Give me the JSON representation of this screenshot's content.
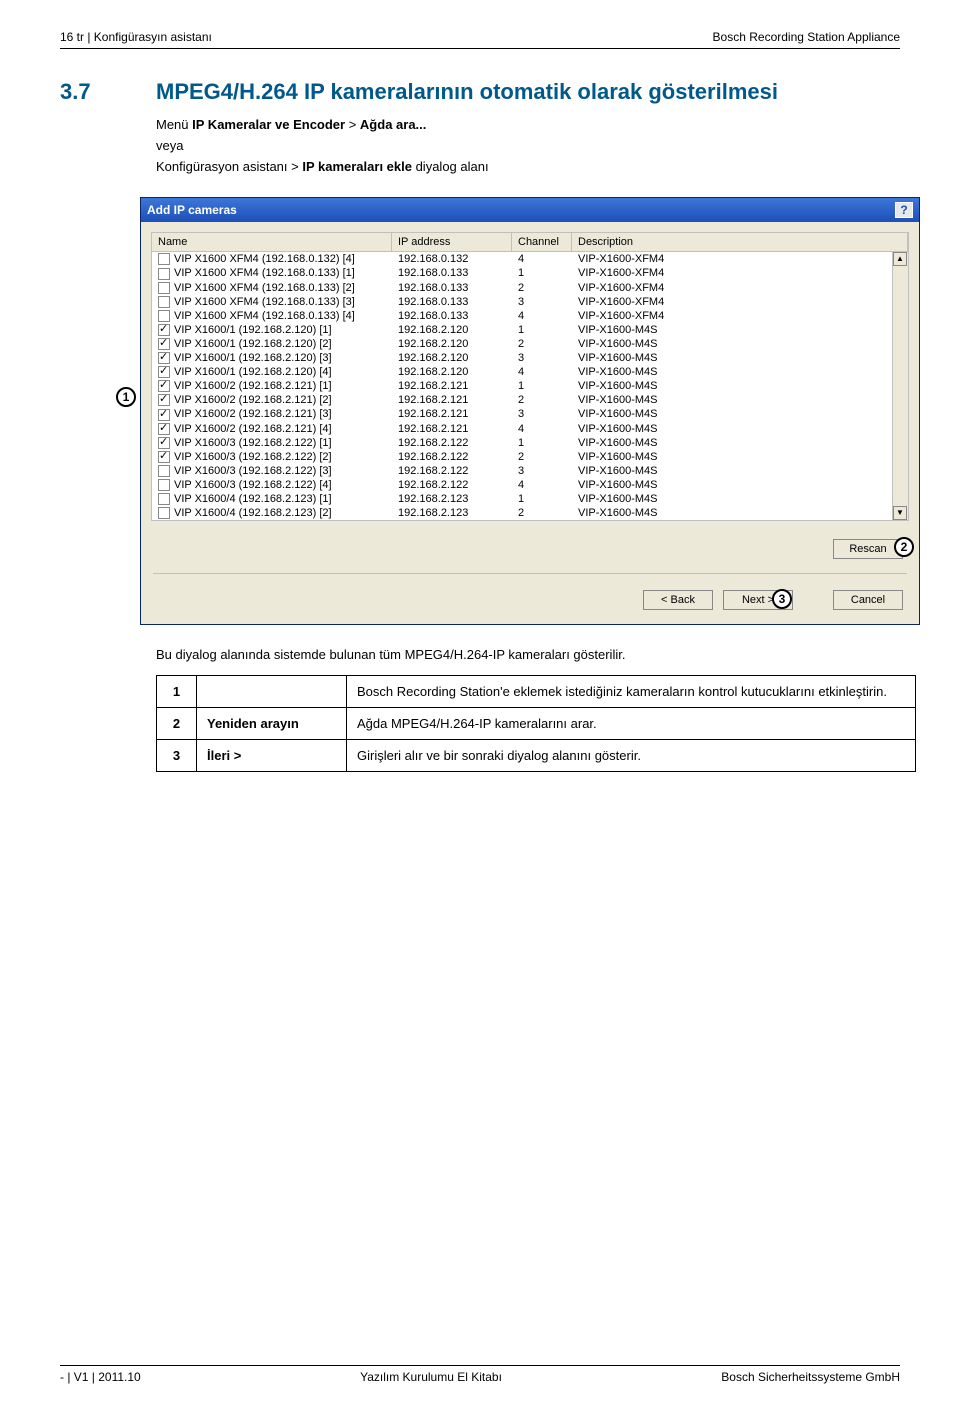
{
  "header": {
    "left": "16    tr | Konfigürasyın asistanı",
    "right": "Bosch Recording Station Appliance"
  },
  "section": {
    "num": "3.7",
    "title": "MPEG4/H.264 IP kameralarının otomatik olarak gösterilmesi"
  },
  "body": {
    "line1a": "Menü ",
    "line1b": "IP Kameralar ve Encoder",
    "line1c": " > ",
    "line1d": "Ağda ara...",
    "line2": "veya",
    "line3a": "Konfigürasyon asistanı > ",
    "line3b": "IP kameraları ekle",
    "line3c": " diyalog alanı"
  },
  "dialog": {
    "title": "Add IP cameras",
    "columns": {
      "name": "Name",
      "ip": "IP address",
      "ch": "Channel",
      "desc": "Description"
    },
    "rows": [
      {
        "c": false,
        "n": "VIP X1600 XFM4 (192.168.0.132) [4]",
        "ip": "192.168.0.132",
        "ch": "4",
        "d": "VIP-X1600-XFM4"
      },
      {
        "c": false,
        "n": "VIP X1600 XFM4 (192.168.0.133) [1]",
        "ip": "192.168.0.133",
        "ch": "1",
        "d": "VIP-X1600-XFM4"
      },
      {
        "c": false,
        "n": "VIP X1600 XFM4 (192.168.0.133) [2]",
        "ip": "192.168.0.133",
        "ch": "2",
        "d": "VIP-X1600-XFM4"
      },
      {
        "c": false,
        "n": "VIP X1600 XFM4 (192.168.0.133) [3]",
        "ip": "192.168.0.133",
        "ch": "3",
        "d": "VIP-X1600-XFM4"
      },
      {
        "c": false,
        "n": "VIP X1600 XFM4 (192.168.0.133) [4]",
        "ip": "192.168.0.133",
        "ch": "4",
        "d": "VIP-X1600-XFM4"
      },
      {
        "c": true,
        "n": "VIP X1600/1 (192.168.2.120) [1]",
        "ip": "192.168.2.120",
        "ch": "1",
        "d": "VIP-X1600-M4S"
      },
      {
        "c": true,
        "n": "VIP X1600/1 (192.168.2.120) [2]",
        "ip": "192.168.2.120",
        "ch": "2",
        "d": "VIP-X1600-M4S"
      },
      {
        "c": true,
        "n": "VIP X1600/1 (192.168.2.120) [3]",
        "ip": "192.168.2.120",
        "ch": "3",
        "d": "VIP-X1600-M4S"
      },
      {
        "c": true,
        "n": "VIP X1600/1 (192.168.2.120) [4]",
        "ip": "192.168.2.120",
        "ch": "4",
        "d": "VIP-X1600-M4S"
      },
      {
        "c": true,
        "n": "VIP X1600/2 (192.168.2.121) [1]",
        "ip": "192.168.2.121",
        "ch": "1",
        "d": "VIP-X1600-M4S"
      },
      {
        "c": true,
        "n": "VIP X1600/2 (192.168.2.121) [2]",
        "ip": "192.168.2.121",
        "ch": "2",
        "d": "VIP-X1600-M4S"
      },
      {
        "c": true,
        "n": "VIP X1600/2 (192.168.2.121) [3]",
        "ip": "192.168.2.121",
        "ch": "3",
        "d": "VIP-X1600-M4S"
      },
      {
        "c": true,
        "n": "VIP X1600/2 (192.168.2.121) [4]",
        "ip": "192.168.2.121",
        "ch": "4",
        "d": "VIP-X1600-M4S"
      },
      {
        "c": true,
        "n": "VIP X1600/3 (192.168.2.122) [1]",
        "ip": "192.168.2.122",
        "ch": "1",
        "d": "VIP-X1600-M4S"
      },
      {
        "c": true,
        "n": "VIP X1600/3 (192.168.2.122) [2]",
        "ip": "192.168.2.122",
        "ch": "2",
        "d": "VIP-X1600-M4S"
      },
      {
        "c": false,
        "n": "VIP X1600/3 (192.168.2.122) [3]",
        "ip": "192.168.2.122",
        "ch": "3",
        "d": "VIP-X1600-M4S"
      },
      {
        "c": false,
        "n": "VIP X1600/3 (192.168.2.122) [4]",
        "ip": "192.168.2.122",
        "ch": "4",
        "d": "VIP-X1600-M4S"
      },
      {
        "c": false,
        "n": "VIP X1600/4 (192.168.2.123) [1]",
        "ip": "192.168.2.123",
        "ch": "1",
        "d": "VIP-X1600-M4S"
      },
      {
        "c": false,
        "n": "VIP X1600/4 (192.168.2.123) [2]",
        "ip": "192.168.2.123",
        "ch": "2",
        "d": "VIP-X1600-M4S"
      }
    ],
    "rescan": "Rescan",
    "back": "< Back",
    "next": "Next >",
    "cancel": "Cancel"
  },
  "callouts": {
    "c1": "1",
    "c2": "2",
    "c3": "3"
  },
  "desc": "Bu diyalog alanında sistemde bulunan tüm MPEG4/H.264-IP kameraları gösterilir.",
  "table": {
    "r1": {
      "n": "1",
      "lbl": "",
      "txt": "Bosch Recording Station'e eklemek istediğiniz kameraların kontrol kutucuklarını etkinleştirin."
    },
    "r2": {
      "n": "2",
      "lbl": "Yeniden arayın",
      "txt": "Ağda MPEG4/H.264-IP kameralarını arar."
    },
    "r3": {
      "n": "3",
      "lbl": "İleri >",
      "txt": "Girişleri alır ve bir sonraki diyalog alanını gösterir."
    }
  },
  "footer": {
    "left": "- | V1 | 2011.10",
    "mid": "Yazılım Kurulumu El Kitabı",
    "right": "Bosch Sicherheitssysteme GmbH"
  }
}
